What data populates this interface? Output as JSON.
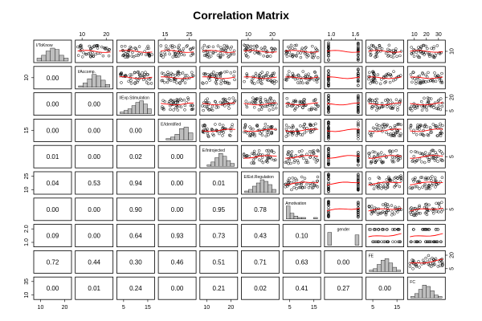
{
  "chart_data": {
    "type": "scatter",
    "subtype": "correlation-matrix (pairs plot)",
    "title": "Correlation Matrix",
    "variables": [
      "I/ToKnow",
      "I/Accomp.",
      "I/Exp.Stimulation",
      "E/Identified",
      "E/Introjected",
      "E/Ext.Regulation",
      "Amotivation",
      "gender",
      "FE",
      "FC"
    ],
    "lower_panel_values": [
      [
        "0.00"
      ],
      [
        "0.00",
        "0.00"
      ],
      [
        "0.00",
        "0.00",
        "0.00"
      ],
      [
        "0.01",
        "0.00",
        "0.02",
        "0.00"
      ],
      [
        "0.04",
        "0.53",
        "0.94",
        "0.00",
        "0.01"
      ],
      [
        "0.00",
        "0.00",
        "0.90",
        "0.00",
        "0.95",
        "0.78"
      ],
      [
        "0.09",
        "0.00",
        "0.64",
        "0.93",
        "0.73",
        "0.43",
        "0.10"
      ],
      [
        "0.72",
        "0.44",
        "0.30",
        "0.46",
        "0.51",
        "0.71",
        "0.63",
        "0.00"
      ],
      [
        "0.00",
        "0.01",
        "0.24",
        "0.00",
        "0.21",
        "0.02",
        "0.41",
        "0.27",
        "0.00"
      ]
    ],
    "histograms": [
      [
        2,
        4,
        7,
        9,
        8,
        4,
        2
      ],
      [
        1,
        3,
        6,
        9,
        8,
        5,
        2
      ],
      [
        1,
        2,
        3,
        5,
        7,
        8,
        6,
        3
      ],
      [
        0,
        1,
        2,
        4,
        8,
        9,
        5
      ],
      [
        0,
        1,
        3,
        6,
        9,
        7,
        4,
        2
      ],
      [
        1,
        2,
        4,
        6,
        8,
        7,
        5,
        2
      ],
      [
        9,
        4,
        2,
        1,
        1,
        0,
        0,
        1
      ],
      [
        5,
        0,
        0,
        0,
        0,
        0,
        0,
        4
      ],
      [
        1,
        2,
        5,
        8,
        9,
        6,
        3,
        1
      ],
      [
        1,
        3,
        6,
        9,
        8,
        5,
        2,
        1
      ]
    ],
    "top_axis_ticks": {
      "1": [
        "10",
        "20"
      ],
      "3": [
        "15",
        "25"
      ],
      "5": [
        "10",
        "20"
      ],
      "7": [
        "1.0",
        "1.6"
      ],
      "9": [
        "10",
        "20",
        "30"
      ]
    },
    "bottom_axis_ticks": {
      "0": [
        "10",
        "20"
      ],
      "2": [
        "5",
        "15"
      ],
      "4": [
        "10",
        "20"
      ],
      "6": [
        "5",
        "15"
      ],
      "8": [
        "5",
        "15"
      ]
    },
    "left_axis_ticks": {
      "1": [
        "10"
      ],
      "3": [
        "15"
      ],
      "5": [
        "10",
        "25"
      ],
      "7": [
        "1.0",
        "2.0"
      ],
      "9": [
        "10",
        "35"
      ]
    },
    "right_axis_ticks": {
      "0": [
        "10"
      ],
      "2": [
        "5",
        "20"
      ],
      "4": [
        "5"
      ],
      "6": [
        "5"
      ],
      "8": [
        "5",
        "20"
      ]
    },
    "colors": {
      "points": "#000000",
      "smooth": "#ff0000",
      "histogram": "#bebebe",
      "border": "#000000"
    }
  }
}
